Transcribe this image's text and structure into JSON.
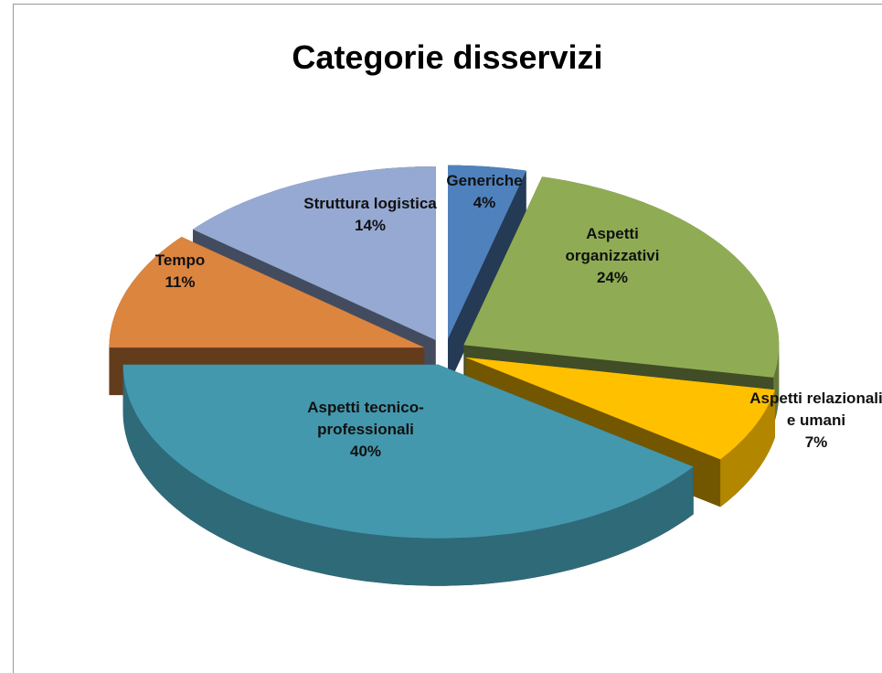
{
  "chart_data": {
    "type": "pie",
    "title": "Categorie disservizi",
    "categories": [
      "Generiche",
      "Aspetti organizzativi",
      "Aspetti relazionali e umani",
      "Aspetti tecnico-professionali",
      "Tempo",
      "Struttura logistica"
    ],
    "values": [
      4,
      24,
      7,
      40,
      11,
      14
    ],
    "value_labels": [
      "4%",
      "24%",
      "7%",
      "40%",
      "11%",
      "14%"
    ],
    "colors": [
      "#4f81bd",
      "#8fac54",
      "#ffc000",
      "#4398ad",
      "#dc853f",
      "#95a9d2"
    ]
  }
}
